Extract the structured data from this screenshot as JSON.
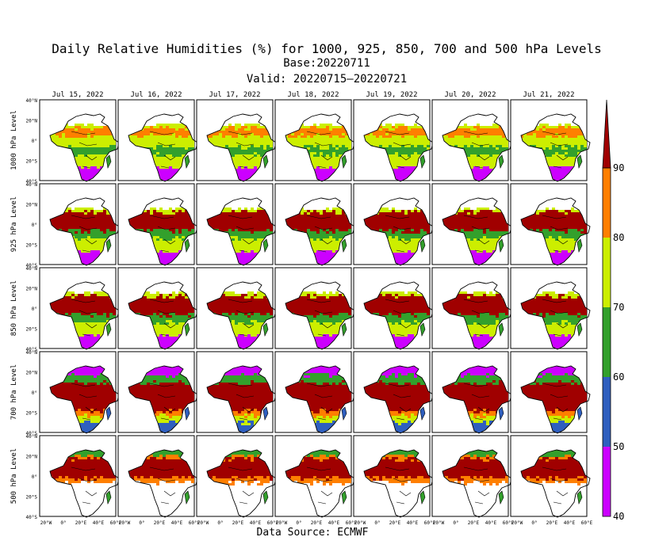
{
  "title": {
    "line1": "Daily Relative Humidities (%) for 1000, 925, 850, 700 and 500 hPa Levels",
    "line2": "Base:20220711",
    "line3": "Valid: 20220715—20220721"
  },
  "footer": "Data Source: ECMWF",
  "chart_data": {
    "type": "heatmap",
    "title": "Daily Relative Humidities (%) for 1000, 925, 850, 700 and 500 hPa Levels",
    "base": "Base:20220711",
    "valid": "Valid: 20220715—20220721",
    "columns": [
      "Jul 15, 2022",
      "Jul 16, 2022",
      "Jul 17, 2022",
      "Jul 18, 2022",
      "Jul 19, 2022",
      "Jul 20, 2022",
      "Jul 21, 2022"
    ],
    "rows": [
      "1000 hPa Level",
      "925 hPa Level",
      "850 hPa Level",
      "700 hPa Level",
      "500 hPa Level"
    ],
    "y_ticks": [
      "40°N",
      "20°N",
      "0°",
      "20°S",
      "40°S"
    ],
    "x_ticks": [
      "20°W",
      "0°",
      "20°E",
      "40°E",
      "60°E"
    ],
    "colorbar": {
      "levels": [
        40,
        50,
        60,
        70,
        80,
        90
      ],
      "labels": [
        "40",
        "50",
        "60",
        "70",
        "80",
        "90"
      ],
      "colors": [
        "#cc00ff",
        "#2f5fbf",
        "#33a02c",
        "#ccee00",
        "#ff7f00",
        "#a00000"
      ],
      "extend": "max"
    },
    "source": "Data Source: ECMWF"
  }
}
